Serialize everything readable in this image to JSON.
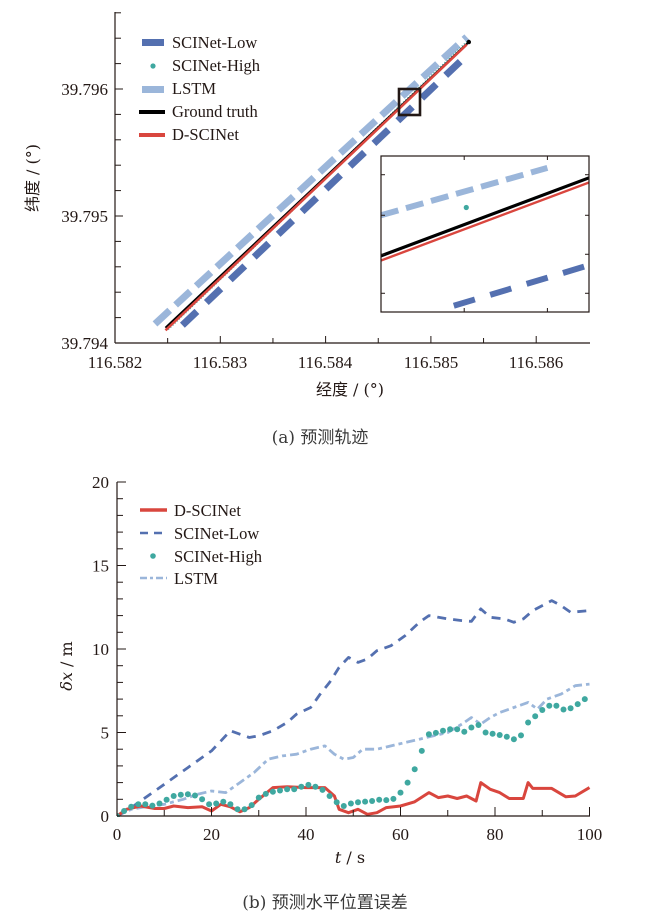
{
  "colors": {
    "scinet_low": "#5470b0",
    "scinet_high": "#3fa8a0",
    "lstm": "#9bb6da",
    "ground_truth": "#000000",
    "d_scinet": "#d9463e",
    "axis": "#231815"
  },
  "chart_data": [
    {
      "type": "line",
      "caption": "(a)  预测轨迹",
      "xlabel": "经度 / (°)",
      "ylabel": "纬度 / (°)",
      "xlim": [
        116.582,
        116.5865
      ],
      "ylim": [
        39.794,
        39.7966
      ],
      "xticks": [
        "116.582",
        "116.583",
        "116.584",
        "116.585",
        "116.586"
      ],
      "yticks": [
        "39.794",
        "39.795",
        "39.796"
      ],
      "legend": [
        "SCINet-Low",
        "SCINet-High",
        "LSTM",
        "Ground truth",
        "D-SCINet"
      ],
      "legend_position": "top-left",
      "series": [
        {
          "name": "SCINet-Low",
          "style": "dashed-thick",
          "x": [
            116.58264,
            116.58536
          ],
          "y": [
            39.79414,
            39.79628
          ]
        },
        {
          "name": "SCINet-High",
          "style": "dotted",
          "x": [
            116.5825,
            116.58536
          ],
          "y": [
            39.79411,
            39.79638
          ]
        },
        {
          "name": "LSTM",
          "style": "dashed-thick",
          "x": [
            116.58238,
            116.58534
          ],
          "y": [
            39.79415,
            39.79641
          ]
        },
        {
          "name": "Ground truth",
          "style": "solid",
          "x": [
            116.58248,
            116.58536
          ],
          "y": [
            39.79412,
            39.79637
          ]
        },
        {
          "name": "D-SCINet",
          "style": "solid",
          "x": [
            116.58248,
            116.58534
          ],
          "y": [
            39.7941,
            39.79635
          ]
        }
      ],
      "inset": {
        "zoom_region_x": [
          116.58477,
          116.58499
        ],
        "zoom_region_y": [
          39.79578,
          39.796
        ],
        "series": [
          {
            "name": "LSTM",
            "y_offset": [
              0.62,
              1.0
            ]
          },
          {
            "name": "SCINet-High",
            "point": [
              0.41,
              0.67
            ]
          },
          {
            "name": "Ground truth",
            "y_offset": [
              0.36,
              0.86
            ]
          },
          {
            "name": "D-SCINet",
            "y_offset": [
              0.33,
              0.83
            ]
          },
          {
            "name": "SCINet-Low",
            "y_offset": [
              -0.1,
              0.3
            ]
          }
        ]
      }
    },
    {
      "type": "line",
      "caption": "(b)  预测水平位置误差",
      "xlabel_italic": "t",
      "xlabel_unit": " / s",
      "ylabel_italic": "δx",
      "ylabel_unit": " / m",
      "xlim": [
        0,
        100
      ],
      "ylim": [
        0,
        20
      ],
      "xticks": [
        "0",
        "20",
        "40",
        "60",
        "80",
        "100"
      ],
      "yticks": [
        "0",
        "5",
        "10",
        "15",
        "20"
      ],
      "legend": [
        "D-SCINet",
        "SCINet-Low",
        "SCINet-High",
        "LSTM"
      ],
      "legend_position": "top-left",
      "series": [
        {
          "name": "D-SCINet",
          "style": "solid",
          "x": [
            0,
            2,
            5,
            8,
            10,
            12,
            15,
            18,
            20,
            22,
            24,
            26,
            28,
            30,
            33,
            36,
            40,
            44,
            46,
            47,
            49,
            51,
            53,
            55,
            57,
            60,
            63,
            66,
            68,
            70,
            72,
            74,
            76,
            77,
            79,
            81,
            83,
            86,
            87,
            88,
            92,
            95,
            97,
            100
          ],
          "y": [
            0,
            0.4,
            0.6,
            0.45,
            0.45,
            0.6,
            0.5,
            0.55,
            0.3,
            0.7,
            0.55,
            0.25,
            0.5,
            1.0,
            1.7,
            1.75,
            1.7,
            1.7,
            1.2,
            0.4,
            0.2,
            0.4,
            0.1,
            0.2,
            0.5,
            0.6,
            0.85,
            1.4,
            1.1,
            1.2,
            1.05,
            1.2,
            0.9,
            2.0,
            1.6,
            1.4,
            1.05,
            1.05,
            2.0,
            1.65,
            1.65,
            1.15,
            1.2,
            1.7
          ]
        },
        {
          "name": "SCINet-Low",
          "style": "dashed",
          "x": [
            0,
            3,
            5,
            8,
            10,
            13,
            15,
            18,
            20,
            22,
            24,
            26,
            28,
            30,
            33,
            36,
            38,
            41,
            43,
            45,
            47,
            49,
            51,
            53,
            55,
            58,
            61,
            64,
            66,
            68,
            70,
            73,
            75,
            77,
            79,
            82,
            84,
            86,
            88,
            90,
            92,
            94,
            96,
            100
          ],
          "y": [
            0,
            0.5,
            0.9,
            1.5,
            1.9,
            2.5,
            2.9,
            3.5,
            3.9,
            4.5,
            5.1,
            4.9,
            4.7,
            4.8,
            5.1,
            5.6,
            6.1,
            6.5,
            7.3,
            8.0,
            8.9,
            9.5,
            9.2,
            9.4,
            9.9,
            10.2,
            10.8,
            11.6,
            12.0,
            11.9,
            11.8,
            11.7,
            11.65,
            12.4,
            11.9,
            11.8,
            11.6,
            11.8,
            12.3,
            12.6,
            12.9,
            12.6,
            12.2,
            12.3
          ]
        },
        {
          "name": "SCINet-High",
          "style": "dots",
          "x": [
            0,
            2,
            4,
            6,
            8,
            10,
            12,
            14,
            16,
            18,
            20,
            22,
            24,
            26,
            28,
            30,
            32,
            34,
            36,
            38,
            40,
            42,
            44,
            46,
            48,
            50,
            52,
            54,
            56,
            58,
            60,
            62,
            63,
            64,
            65,
            66,
            68,
            70,
            72,
            74,
            76,
            78,
            80,
            82,
            84,
            86,
            87,
            89,
            91,
            93,
            95,
            97,
            100
          ],
          "y": [
            0,
            0.4,
            0.7,
            0.7,
            0.6,
            0.9,
            1.2,
            1.3,
            1.3,
            1.0,
            0.6,
            0.9,
            0.7,
            0.3,
            0.5,
            1.1,
            1.4,
            1.5,
            1.6,
            1.6,
            1.9,
            1.75,
            1.5,
            0.9,
            0.6,
            0.8,
            0.85,
            0.9,
            1.0,
            0.9,
            1.4,
            2.2,
            2.8,
            3.4,
            4.4,
            4.9,
            5.0,
            5.2,
            5.2,
            5.0,
            5.6,
            5.0,
            4.9,
            4.8,
            4.6,
            4.9,
            5.6,
            6.1,
            6.6,
            6.6,
            6.3,
            6.6,
            7.2
          ]
        },
        {
          "name": "LSTM",
          "style": "dash-dot",
          "x": [
            0,
            3,
            6,
            10,
            14,
            17,
            20,
            23,
            26,
            29,
            32,
            35,
            38,
            41,
            44,
            46,
            48,
            50,
            52,
            55,
            58,
            61,
            64,
            67,
            70,
            73,
            75,
            77,
            79,
            81,
            84,
            87,
            89,
            91,
            94,
            97,
            100
          ],
          "y": [
            0,
            0.4,
            0.55,
            0.7,
            1.0,
            1.3,
            1.5,
            1.4,
            2.0,
            2.6,
            3.4,
            3.6,
            3.7,
            4.0,
            4.2,
            3.7,
            3.4,
            3.5,
            4.0,
            4.0,
            4.2,
            4.4,
            4.6,
            4.8,
            5.0,
            5.5,
            5.9,
            5.5,
            5.9,
            6.2,
            6.5,
            6.8,
            6.4,
            7.0,
            7.3,
            7.8,
            7.9
          ]
        }
      ]
    }
  ]
}
